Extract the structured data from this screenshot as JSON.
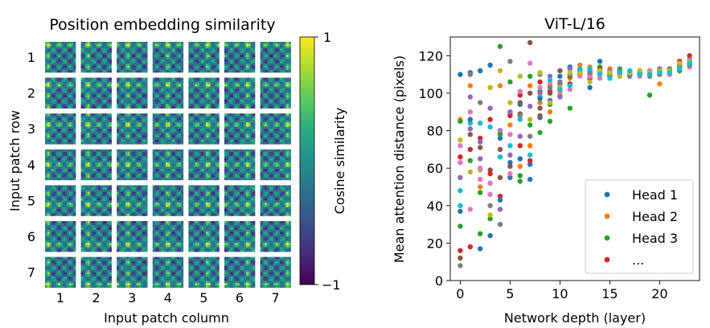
{
  "chart_data": [
    {
      "type": "heatmap",
      "title": "Position embedding similarity",
      "xlabel": "Input patch column",
      "ylabel": "Input patch row",
      "x_ticks": [
        "1",
        "2",
        "3",
        "4",
        "5",
        "6",
        "7"
      ],
      "y_ticks": [
        "1",
        "2",
        "3",
        "4",
        "5",
        "6",
        "7"
      ],
      "grid_size": [
        7,
        7
      ],
      "colorbar": {
        "label": "Cosine similarity",
        "range": [
          -1,
          1
        ],
        "tick_labels": [
          "1",
          "−1"
        ],
        "colormap": "viridis"
      }
    },
    {
      "type": "scatter",
      "title": "ViT-L/16",
      "xlabel": "Network depth (layer)",
      "ylabel": "Mean attention distance (pixels)",
      "xlim": [
        -1,
        24
      ],
      "ylim": [
        0,
        130
      ],
      "x_ticks": [
        0,
        5,
        10,
        15,
        20
      ],
      "y_ticks": [
        0,
        20,
        40,
        60,
        80,
        100,
        120
      ],
      "legend_position": "lower-right",
      "legend": [
        "Head 1",
        "Head 2",
        "Head 3",
        "..."
      ],
      "palette": [
        "#1f77b4",
        "#ff7f0e",
        "#2ca02c",
        "#d62728",
        "#9467bd",
        "#8c564b",
        "#e377c2",
        "#7f7f7f",
        "#bcbd22",
        "#17becf"
      ],
      "points": [
        [
          0,
          110,
          0
        ],
        [
          0,
          86,
          1
        ],
        [
          0,
          85,
          2
        ],
        [
          0,
          66,
          3
        ],
        [
          0,
          55,
          4
        ],
        [
          0,
          12,
          5
        ],
        [
          0,
          72,
          6
        ],
        [
          0,
          8,
          7
        ],
        [
          0,
          75,
          8
        ],
        [
          0,
          48,
          9
        ],
        [
          0,
          37,
          0
        ],
        [
          0,
          29,
          2
        ],
        [
          0,
          16,
          3
        ],
        [
          0,
          63,
          6
        ],
        [
          0,
          40,
          9
        ],
        [
          1,
          111,
          0
        ],
        [
          1,
          104,
          1
        ],
        [
          1,
          64,
          2
        ],
        [
          1,
          18,
          3
        ],
        [
          1,
          81,
          4
        ],
        [
          1,
          78,
          5
        ],
        [
          1,
          90,
          6
        ],
        [
          1,
          110,
          7
        ],
        [
          1,
          58,
          8
        ],
        [
          1,
          84,
          9
        ],
        [
          1,
          86,
          0
        ],
        [
          1,
          38,
          6
        ],
        [
          1,
          70,
          3
        ],
        [
          1,
          98,
          4
        ],
        [
          2,
          112,
          0
        ],
        [
          2,
          50,
          1
        ],
        [
          2,
          25,
          2
        ],
        [
          2,
          76,
          3
        ],
        [
          2,
          65,
          4
        ],
        [
          2,
          71,
          5
        ],
        [
          2,
          54,
          6
        ],
        [
          2,
          95,
          7
        ],
        [
          2,
          59,
          8
        ],
        [
          2,
          84,
          9
        ],
        [
          2,
          17,
          0
        ],
        [
          2,
          60,
          6
        ],
        [
          2,
          47,
          2
        ],
        [
          2,
          74,
          4
        ],
        [
          3,
          115,
          0
        ],
        [
          3,
          103,
          1
        ],
        [
          3,
          33,
          2
        ],
        [
          3,
          86,
          3
        ],
        [
          3,
          92,
          4
        ],
        [
          3,
          59,
          5
        ],
        [
          3,
          46,
          6
        ],
        [
          3,
          40,
          7
        ],
        [
          3,
          103,
          8
        ],
        [
          3,
          82,
          9
        ],
        [
          3,
          24,
          0
        ],
        [
          3,
          52,
          6
        ],
        [
          3,
          35,
          8
        ],
        [
          3,
          57,
          3
        ],
        [
          4,
          76,
          0
        ],
        [
          4,
          104,
          1
        ],
        [
          4,
          125,
          2
        ],
        [
          4,
          45,
          3
        ],
        [
          4,
          80,
          4
        ],
        [
          4,
          55,
          5
        ],
        [
          4,
          79,
          6
        ],
        [
          4,
          30,
          7
        ],
        [
          4,
          112,
          8
        ],
        [
          4,
          66,
          9
        ],
        [
          4,
          43,
          0
        ],
        [
          4,
          78,
          2
        ],
        [
          4,
          38,
          4
        ],
        [
          4,
          70,
          5
        ],
        [
          5,
          63,
          0
        ],
        [
          5,
          89,
          1
        ],
        [
          5,
          106,
          2
        ],
        [
          5,
          88,
          3
        ],
        [
          5,
          67,
          4
        ],
        [
          5,
          61,
          5
        ],
        [
          5,
          78,
          6
        ],
        [
          5,
          117,
          7
        ],
        [
          5,
          95,
          8
        ],
        [
          5,
          72,
          9
        ],
        [
          5,
          55,
          0
        ],
        [
          5,
          83,
          1
        ],
        [
          5,
          90,
          4
        ],
        [
          5,
          57,
          6
        ],
        [
          6,
          94,
          0
        ],
        [
          6,
          61,
          1
        ],
        [
          6,
          53,
          2
        ],
        [
          6,
          99,
          3
        ],
        [
          6,
          77,
          4
        ],
        [
          6,
          89,
          5
        ],
        [
          6,
          101,
          6
        ],
        [
          6,
          88,
          7
        ],
        [
          6,
          109,
          8
        ],
        [
          6,
          86,
          9
        ],
        [
          6,
          65,
          0
        ],
        [
          6,
          56,
          2
        ],
        [
          6,
          72,
          3
        ],
        [
          6,
          95,
          5
        ],
        [
          7,
          62,
          0
        ],
        [
          7,
          104,
          1
        ],
        [
          7,
          109,
          2
        ],
        [
          7,
          64,
          3
        ],
        [
          7,
          93,
          4
        ],
        [
          7,
          127,
          5
        ],
        [
          7,
          116,
          6
        ],
        [
          7,
          77,
          7
        ],
        [
          7,
          86,
          8
        ],
        [
          7,
          67,
          9
        ],
        [
          7,
          54,
          0
        ],
        [
          7,
          72,
          1
        ],
        [
          7,
          83,
          2
        ],
        [
          7,
          100,
          5
        ],
        [
          8,
          87,
          0
        ],
        [
          8,
          95,
          1
        ],
        [
          8,
          101,
          2
        ],
        [
          8,
          106,
          3
        ],
        [
          8,
          100,
          4
        ],
        [
          8,
          92,
          5
        ],
        [
          8,
          103,
          6
        ],
        [
          8,
          110,
          7
        ],
        [
          8,
          111,
          8
        ],
        [
          8,
          98,
          9
        ],
        [
          8,
          97,
          0
        ],
        [
          8,
          79,
          2
        ],
        [
          8,
          88,
          5
        ],
        [
          9,
          96,
          0
        ],
        [
          9,
          104,
          1
        ],
        [
          9,
          94,
          2
        ],
        [
          9,
          101,
          3
        ],
        [
          9,
          109,
          4
        ],
        [
          9,
          100,
          5
        ],
        [
          9,
          105,
          6
        ],
        [
          9,
          103,
          7
        ],
        [
          9,
          95,
          8
        ],
        [
          9,
          107,
          9
        ],
        [
          9,
          90,
          1
        ],
        [
          9,
          85,
          2
        ],
        [
          10,
          103,
          0
        ],
        [
          10,
          99,
          1
        ],
        [
          10,
          105,
          2
        ],
        [
          10,
          102,
          3
        ],
        [
          10,
          105,
          4
        ],
        [
          10,
          112,
          5
        ],
        [
          10,
          101,
          6
        ],
        [
          10,
          106,
          7
        ],
        [
          10,
          103,
          8
        ],
        [
          10,
          102,
          9
        ],
        [
          10,
          98,
          4
        ],
        [
          10,
          109,
          0
        ],
        [
          11,
          114,
          0
        ],
        [
          11,
          108,
          1
        ],
        [
          11,
          92,
          2
        ],
        [
          11,
          105,
          3
        ],
        [
          11,
          113,
          4
        ],
        [
          11,
          109,
          5
        ],
        [
          11,
          102,
          6
        ],
        [
          11,
          110,
          7
        ],
        [
          11,
          111,
          8
        ],
        [
          11,
          104,
          9
        ],
        [
          12,
          112,
          0
        ],
        [
          12,
          115,
          1
        ],
        [
          12,
          113,
          2
        ],
        [
          12,
          111,
          3
        ],
        [
          12,
          112,
          4
        ],
        [
          12,
          110,
          5
        ],
        [
          12,
          109,
          6
        ],
        [
          12,
          112,
          7
        ],
        [
          12,
          111,
          8
        ],
        [
          12,
          113,
          9
        ],
        [
          13,
          103,
          0
        ],
        [
          13,
          114,
          1
        ],
        [
          13,
          111,
          2
        ],
        [
          13,
          108,
          3
        ],
        [
          13,
          112,
          4
        ],
        [
          13,
          110,
          5
        ],
        [
          13,
          109,
          6
        ],
        [
          13,
          111,
          7
        ],
        [
          13,
          106,
          8
        ],
        [
          13,
          113,
          9
        ],
        [
          14,
          117,
          0
        ],
        [
          14,
          110,
          1
        ],
        [
          14,
          114,
          2
        ],
        [
          14,
          112,
          3
        ],
        [
          14,
          111,
          4
        ],
        [
          14,
          113,
          5
        ],
        [
          14,
          108,
          6
        ],
        [
          14,
          111,
          7
        ],
        [
          14,
          112,
          8
        ],
        [
          14,
          110,
          9
        ],
        [
          15,
          109,
          0
        ],
        [
          15,
          113,
          1
        ],
        [
          15,
          111,
          2
        ],
        [
          15,
          110,
          3
        ],
        [
          15,
          112,
          4
        ],
        [
          15,
          109,
          5
        ],
        [
          15,
          111,
          6
        ],
        [
          15,
          110,
          7
        ],
        [
          15,
          111,
          8
        ],
        [
          15,
          108,
          9
        ],
        [
          16,
          110,
          0
        ],
        [
          16,
          111,
          1
        ],
        [
          16,
          113,
          2
        ],
        [
          16,
          109,
          3
        ],
        [
          16,
          112,
          4
        ],
        [
          16,
          111,
          5
        ],
        [
          16,
          110,
          6
        ],
        [
          16,
          112,
          7
        ],
        [
          16,
          109,
          8
        ],
        [
          16,
          111,
          9
        ],
        [
          17,
          111,
          0
        ],
        [
          17,
          110,
          1
        ],
        [
          17,
          112,
          2
        ],
        [
          17,
          110,
          3
        ],
        [
          17,
          109,
          4
        ],
        [
          17,
          111,
          5
        ],
        [
          17,
          112,
          6
        ],
        [
          17,
          110,
          7
        ],
        [
          17,
          111,
          8
        ],
        [
          17,
          112,
          9
        ],
        [
          18,
          111,
          0
        ],
        [
          18,
          112,
          1
        ],
        [
          18,
          110,
          2
        ],
        [
          18,
          111,
          3
        ],
        [
          18,
          112,
          4
        ],
        [
          18,
          110,
          5
        ],
        [
          18,
          109,
          6
        ],
        [
          18,
          111,
          7
        ],
        [
          18,
          112,
          8
        ],
        [
          18,
          110,
          9
        ],
        [
          19,
          111,
          0
        ],
        [
          19,
          110,
          1
        ],
        [
          19,
          99,
          2
        ],
        [
          19,
          112,
          3
        ],
        [
          19,
          111,
          4
        ],
        [
          19,
          110,
          5
        ],
        [
          19,
          112,
          6
        ],
        [
          19,
          109,
          7
        ],
        [
          19,
          111,
          8
        ],
        [
          19,
          110,
          9
        ],
        [
          20,
          112,
          0
        ],
        [
          20,
          105,
          1
        ],
        [
          20,
          111,
          2
        ],
        [
          20,
          110,
          3
        ],
        [
          20,
          113,
          4
        ],
        [
          20,
          112,
          5
        ],
        [
          20,
          111,
          6
        ],
        [
          20,
          110,
          7
        ],
        [
          20,
          112,
          8
        ],
        [
          20,
          111,
          9
        ],
        [
          21,
          113,
          0
        ],
        [
          21,
          110,
          1
        ],
        [
          21,
          112,
          2
        ],
        [
          21,
          113,
          3
        ],
        [
          21,
          111,
          4
        ],
        [
          21,
          112,
          5
        ],
        [
          21,
          110,
          6
        ],
        [
          21,
          113,
          7
        ],
        [
          21,
          112,
          8
        ],
        [
          21,
          111,
          9
        ],
        [
          22,
          114,
          0
        ],
        [
          22,
          116,
          1
        ],
        [
          22,
          112,
          2
        ],
        [
          22,
          117,
          3
        ],
        [
          22,
          113,
          4
        ],
        [
          22,
          115,
          5
        ],
        [
          22,
          113,
          6
        ],
        [
          22,
          114,
          7
        ],
        [
          22,
          116,
          8
        ],
        [
          22,
          113,
          9
        ],
        [
          23,
          115,
          0
        ],
        [
          23,
          117,
          1
        ],
        [
          23,
          116,
          2
        ],
        [
          23,
          120,
          3
        ],
        [
          23,
          118,
          4
        ],
        [
          23,
          116,
          5
        ],
        [
          23,
          114,
          6
        ],
        [
          23,
          115,
          7
        ],
        [
          23,
          117,
          8
        ],
        [
          23,
          116,
          9
        ]
      ]
    }
  ]
}
